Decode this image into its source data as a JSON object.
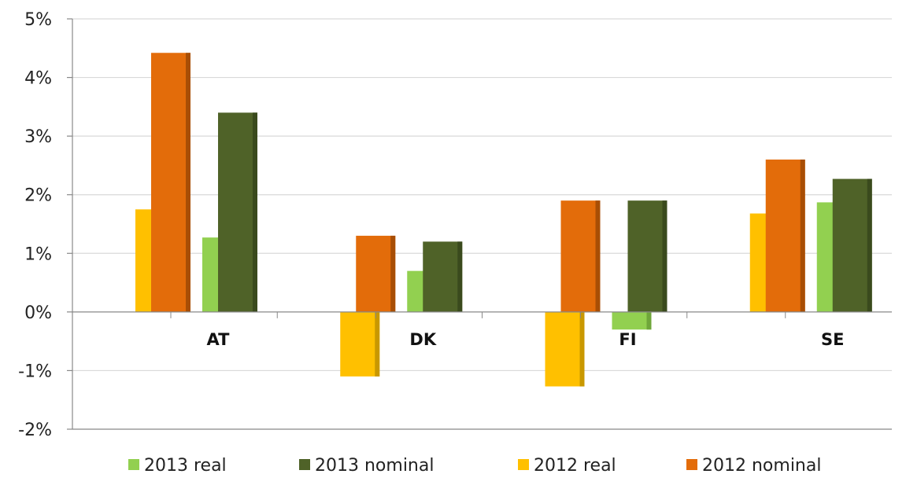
{
  "chart_data": {
    "type": "bar",
    "categories": [
      "AT",
      "DK",
      "FI",
      "SE"
    ],
    "series": [
      {
        "name": "2012 real",
        "color": "#ffc000",
        "side": "#c99800",
        "values": [
          1.75,
          -1.1,
          -1.27,
          1.68
        ]
      },
      {
        "name": "2012 nominal",
        "color": "#e36c0a",
        "side": "#a84e05",
        "values": [
          4.42,
          1.3,
          1.9,
          2.6
        ]
      },
      {
        "name": "2013 real",
        "color": "#92d050",
        "side": "#6fa63a",
        "values": [
          1.27,
          0.7,
          -0.3,
          1.87
        ]
      },
      {
        "name": "2013 nominal",
        "color": "#4f6228",
        "side": "#3a4a1d",
        "values": [
          3.4,
          1.2,
          1.9,
          2.27
        ]
      }
    ],
    "ylim": [
      -2,
      5
    ],
    "yticks": [
      -2,
      -1,
      0,
      1,
      2,
      3,
      4,
      5
    ],
    "ytick_labels": [
      "-2%",
      "-1%",
      "0%",
      "1%",
      "2%",
      "3%",
      "4%",
      "5%"
    ],
    "grid": true,
    "legend": {
      "position": "bottom",
      "order": [
        "2013 real",
        "2013 nominal",
        "2012 real",
        "2012 nominal"
      ]
    }
  }
}
